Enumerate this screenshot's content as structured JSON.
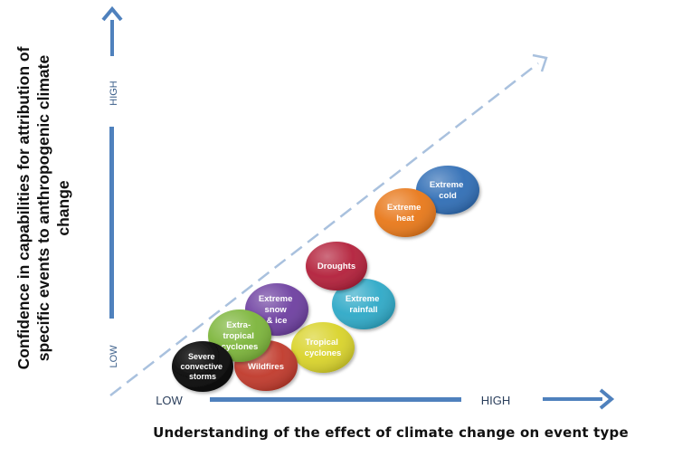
{
  "axes": {
    "y_title_line1": "Confidence in capabilities for attribution of",
    "y_title_line2": "specific events to anthropogenic climate change",
    "x_title": "Understanding of the effect of climate change on event type",
    "y_high": "HIGH",
    "y_low": "LOW",
    "x_low": "LOW",
    "x_high": "HIGH",
    "arrow_color": "#4f81bd",
    "diagonal_color": "#a9c1de"
  },
  "events": [
    {
      "id": "severe-convective-storms",
      "lines": [
        "Severe",
        "convective",
        "storms"
      ],
      "color": "#0a0a0a"
    },
    {
      "id": "wildfires",
      "lines": [
        "Wildfires"
      ],
      "color": "#c0392b"
    },
    {
      "id": "extra-tropical-cyclones",
      "lines": [
        "Extra-",
        "tropical",
        "cyclones"
      ],
      "color": "#7cb53a"
    },
    {
      "id": "tropical-cyclones",
      "lines": [
        "Tropical",
        "cyclones"
      ],
      "color": "#d9d32a"
    },
    {
      "id": "extreme-snow-ice",
      "lines": [
        "Extreme",
        "snow",
        "& ice"
      ],
      "color": "#6d3fa0"
    },
    {
      "id": "extreme-rainfall",
      "lines": [
        "Extreme",
        "rainfall"
      ],
      "color": "#2ea9c7"
    },
    {
      "id": "droughts",
      "lines": [
        "Droughts"
      ],
      "color": "#b3203a"
    },
    {
      "id": "extreme-heat",
      "lines": [
        "Extreme",
        "heat"
      ],
      "color": "#e8781a"
    },
    {
      "id": "extreme-cold",
      "lines": [
        "Extreme",
        "cold"
      ],
      "color": "#2f6db5"
    }
  ]
}
